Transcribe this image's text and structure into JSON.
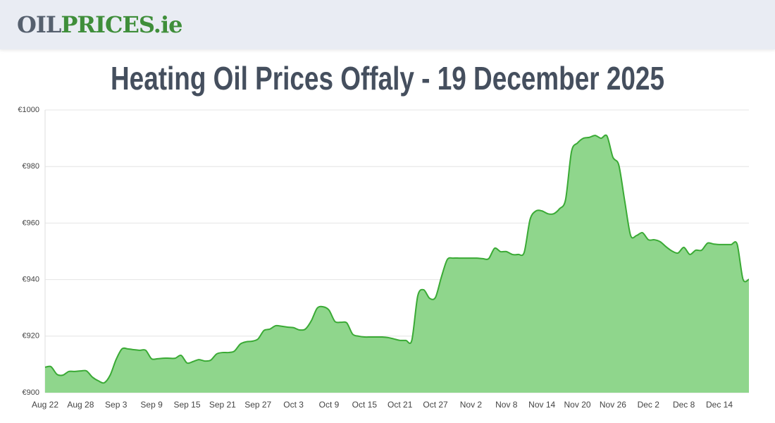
{
  "header": {
    "logo_part1": "OIL",
    "logo_part2": "PRICES.ie"
  },
  "chart_data": {
    "type": "area",
    "title": "Heating Oil Prices Offaly - 19 December 2025",
    "categories": [
      "Aug 22",
      null,
      null,
      null,
      null,
      null,
      "Aug 28",
      null,
      null,
      null,
      null,
      null,
      "Sep 3",
      null,
      null,
      null,
      null,
      null,
      "Sep 9",
      null,
      null,
      null,
      null,
      null,
      "Sep 15",
      null,
      null,
      null,
      null,
      null,
      "Sep 21",
      null,
      null,
      null,
      null,
      null,
      "Sep 27",
      null,
      null,
      null,
      null,
      null,
      "Oct 3",
      null,
      null,
      null,
      null,
      null,
      "Oct 9",
      null,
      null,
      null,
      null,
      null,
      "Oct 15",
      null,
      null,
      null,
      null,
      null,
      "Oct 21",
      null,
      null,
      null,
      null,
      null,
      "Oct 27",
      null,
      null,
      null,
      null,
      null,
      "Nov 2",
      null,
      null,
      null,
      null,
      null,
      "Nov 8",
      null,
      null,
      null,
      null,
      null,
      "Nov 14",
      null,
      null,
      null,
      null,
      null,
      "Nov 20",
      null,
      null,
      null,
      null,
      null,
      "Nov 26",
      null,
      null,
      null,
      null,
      null,
      "Dec 2",
      null,
      null,
      null,
      null,
      null,
      "Dec 8",
      null,
      null,
      null,
      null,
      null,
      "Dec 14",
      null,
      null,
      null,
      null,
      null
    ],
    "values": [
      909.0,
      909.2,
      906.5,
      906.2,
      907.5,
      907.5,
      907.7,
      907.7,
      905.5,
      904.2,
      903.5,
      906.2,
      911.7,
      915.5,
      915.5,
      915.2,
      915.0,
      915.0,
      912.0,
      912.0,
      912.2,
      912.2,
      912.2,
      913.2,
      910.5,
      911.0,
      911.7,
      911.2,
      911.5,
      913.7,
      914.2,
      914.2,
      914.7,
      917.2,
      918.0,
      918.2,
      919.0,
      922.0,
      922.5,
      923.7,
      923.5,
      923.2,
      923.0,
      922.2,
      922.5,
      925.4,
      929.9,
      930.4,
      929.2,
      925.2,
      924.9,
      924.7,
      920.7,
      920.0,
      919.7,
      919.7,
      919.7,
      919.7,
      919.5,
      919.0,
      918.5,
      918.5,
      918.5,
      934.2,
      936.4,
      933.4,
      933.7,
      940.9,
      947.1,
      947.6,
      947.6,
      947.6,
      947.6,
      947.6,
      947.4,
      947.4,
      951.1,
      949.9,
      949.9,
      948.9,
      948.9,
      949.6,
      961.3,
      964.3,
      964.3,
      963.3,
      963.3,
      965.1,
      968.3,
      985.3,
      988.3,
      990.0,
      990.3,
      991.0,
      990.0,
      990.8,
      983.3,
      980.5,
      967.8,
      955.6,
      955.6,
      956.6,
      954.1,
      954.1,
      953.4,
      951.6,
      950.1,
      949.4,
      951.4,
      948.9,
      950.4,
      950.4,
      952.9,
      952.6,
      952.4,
      952.4,
      952.4,
      952.6,
      940.1,
      940.1
    ],
    "color": "#3aaa35",
    "fill_color": "#8fd68c",
    "ylim": [
      900,
      1000
    ],
    "yticks": [
      {
        "value": 900,
        "label": "€900"
      },
      {
        "value": 920,
        "label": "€920"
      },
      {
        "value": 940,
        "label": "€940"
      },
      {
        "value": 960,
        "label": "€960"
      },
      {
        "value": 980,
        "label": "€980"
      },
      {
        "value": 1000,
        "label": "€1000"
      }
    ],
    "grid": true
  }
}
